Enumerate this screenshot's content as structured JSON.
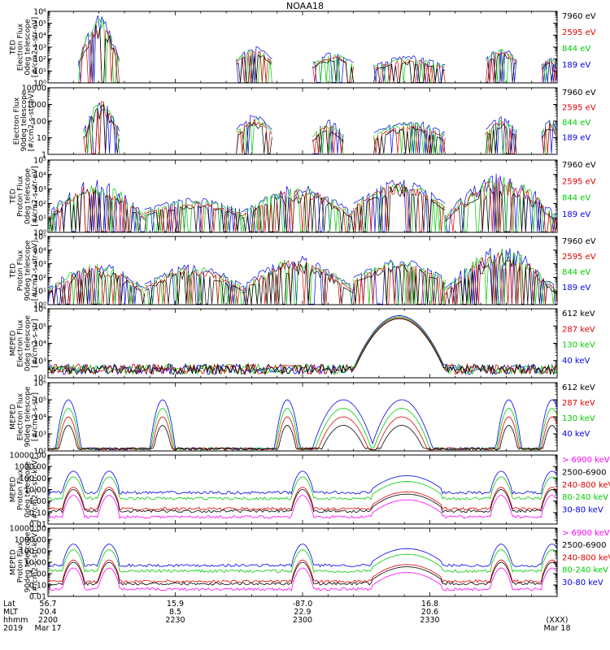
{
  "title": "NOAA18",
  "colors": {
    "blue": "#0000ee",
    "red": "#dd0000",
    "green": "#00cc00",
    "black": "#000000",
    "magenta": "#ff00ff"
  },
  "chart_data": [
    {
      "type": "line",
      "panel": 1,
      "ylog": true,
      "ylim": [
        1,
        1000000
      ],
      "ylabel_lines": [
        "TED",
        "Electron Flux",
        "0deg telescope",
        "[#/cm2-s-str-eV]"
      ],
      "yticks": [
        "10⁰",
        "10¹",
        "10²",
        "10³",
        "10⁴",
        "10⁵",
        "10⁶"
      ],
      "series": [
        {
          "name": "7960 eV",
          "color": "black"
        },
        {
          "name": "2595 eV",
          "color": "red"
        },
        {
          "name": "844 eV",
          "color": "green"
        },
        {
          "name": "189 eV",
          "color": "blue"
        }
      ],
      "segments": [
        {
          "t0": 0.06,
          "t1": 0.14,
          "level": 1.9,
          "peak": 5.8
        },
        {
          "t0": 0.37,
          "t1": 0.44,
          "level": 2.0,
          "peak": 3.1
        },
        {
          "t0": 0.52,
          "t1": 0.6,
          "level": 1.7,
          "peak": 2.6
        },
        {
          "t0": 0.64,
          "t1": 0.78,
          "level": 1.5,
          "peak": 2.3
        },
        {
          "t0": 0.86,
          "t1": 0.92,
          "level": 2.0,
          "peak": 3.0
        },
        {
          "t0": 0.97,
          "t1": 1.0,
          "level": 1.6,
          "peak": 2.2
        }
      ]
    },
    {
      "type": "line",
      "panel": 2,
      "ylog": true,
      "ylim": [
        1,
        10000
      ],
      "ylabel_lines": [
        "Electron Flux",
        "90deg telescope",
        "[#/cm2-s-str-eV]"
      ],
      "yticks": [
        "1",
        "10",
        "100",
        "1000",
        "10000"
      ],
      "series": [
        {
          "name": "7960 eV",
          "color": "black"
        },
        {
          "name": "2595 eV",
          "color": "red"
        },
        {
          "name": "844 eV",
          "color": "green"
        },
        {
          "name": "189 eV",
          "color": "blue"
        }
      ],
      "segments": [
        {
          "t0": 0.07,
          "t1": 0.14,
          "level": 1.4,
          "peak": 3.5
        },
        {
          "t0": 0.37,
          "t1": 0.44,
          "level": 1.5,
          "peak": 2.4
        },
        {
          "t0": 0.52,
          "t1": 0.58,
          "level": 1.2,
          "peak": 2.1
        },
        {
          "t0": 0.64,
          "t1": 0.78,
          "level": 1.3,
          "peak": 2.1
        },
        {
          "t0": 0.86,
          "t1": 0.92,
          "level": 1.5,
          "peak": 2.3
        },
        {
          "t0": 0.97,
          "t1": 1.0,
          "level": 1.4,
          "peak": 2.2
        }
      ]
    },
    {
      "type": "line",
      "panel": 3,
      "ylog": true,
      "ylim": [
        1,
        100000
      ],
      "ylabel_lines": [
        "TED",
        "Proton Flux",
        "0deg telescope",
        "[#/cm2-s-str-eV]"
      ],
      "yticks": [
        "10⁰",
        "10¹",
        "10²",
        "10³",
        "10⁴",
        "10⁵"
      ],
      "series": [
        {
          "name": "7960 eV",
          "color": "black"
        },
        {
          "name": "2595 eV",
          "color": "red"
        },
        {
          "name": "844 eV",
          "color": "green"
        },
        {
          "name": "189 eV",
          "color": "blue"
        }
      ],
      "segments": [
        {
          "t0": 0.0,
          "t1": 0.19,
          "level": 1.3,
          "peak": 3.7
        },
        {
          "t0": 0.19,
          "t1": 0.38,
          "level": 1.6,
          "peak": 2.4
        },
        {
          "t0": 0.38,
          "t1": 0.6,
          "level": 1.4,
          "peak": 3.3
        },
        {
          "t0": 0.6,
          "t1": 0.78,
          "level": 2.0,
          "peak": 3.7
        },
        {
          "t0": 0.78,
          "t1": 1.0,
          "level": 1.2,
          "peak": 4.1
        }
      ]
    },
    {
      "type": "line",
      "panel": 4,
      "ylog": true,
      "ylim": [
        1,
        100000
      ],
      "ylabel_lines": [
        "TED",
        "Proton Flux",
        "90deg telescope",
        "[#/cm2-s-str-eV]"
      ],
      "yticks": [
        "10⁰",
        "10¹",
        "10²",
        "10³",
        "10⁴",
        "10⁵"
      ],
      "series": [
        {
          "name": "7960 eV",
          "color": "black"
        },
        {
          "name": "2595 eV",
          "color": "red"
        },
        {
          "name": "844 eV",
          "color": "green"
        },
        {
          "name": "189 eV",
          "color": "blue"
        }
      ],
      "segments": [
        {
          "t0": 0.0,
          "t1": 0.19,
          "level": 1.2,
          "peak": 3.2
        },
        {
          "t0": 0.19,
          "t1": 0.38,
          "level": 1.5,
          "peak": 3.0
        },
        {
          "t0": 0.38,
          "t1": 0.6,
          "level": 1.3,
          "peak": 3.6
        },
        {
          "t0": 0.6,
          "t1": 0.78,
          "level": 2.0,
          "peak": 3.4
        },
        {
          "t0": 0.78,
          "t1": 1.0,
          "level": 1.2,
          "peak": 4.3
        }
      ]
    },
    {
      "type": "line",
      "panel": 5,
      "ylog": true,
      "ylim": [
        100,
        1000000
      ],
      "ylabel_lines": [
        "MEPED",
        "Electron Flux",
        "0deg telescope",
        "[#/cm2-s-str]"
      ],
      "yticks": [
        "10²",
        "10³",
        "10⁴",
        "10⁵",
        "10⁶"
      ],
      "series": [
        {
          "name": "612 keV",
          "color": "black"
        },
        {
          "name": "287 keV",
          "color": "red"
        },
        {
          "name": "130 keV",
          "color": "green"
        },
        {
          "name": "40 keV",
          "color": "blue"
        }
      ],
      "dome": {
        "t_center": 0.69,
        "half_width": 0.095,
        "peak_log": 5.6,
        "floor_log": 2.2
      }
    },
    {
      "type": "line",
      "panel": 6,
      "ylog": true,
      "ylim": [
        100,
        1000000
      ],
      "ylabel_lines": [
        "MEPED",
        "Electron Flux",
        "90deg telescope",
        "[#/cm2-s-str]"
      ],
      "yticks": [
        "10²",
        "10³",
        "10⁴",
        "10⁵",
        "10⁶"
      ],
      "series": [
        {
          "name": "612 keV",
          "color": "black"
        },
        {
          "name": "287 keV",
          "color": "red"
        },
        {
          "name": "130 keV",
          "color": "green"
        },
        {
          "name": "40 keV",
          "color": "blue"
        }
      ],
      "bumps": [
        0.04,
        0.225,
        0.47,
        0.58,
        0.695,
        0.905,
        0.99
      ]
    },
    {
      "type": "line",
      "panel": 7,
      "ylog": true,
      "ylim": [
        0.01,
        10000
      ],
      "ylabel_lines": [
        "MEPED",
        "Proton Flux",
        "0deg telescope",
        "[#/cm2-s-str-keV]"
      ],
      "yticks": [
        "0.01",
        "0.10",
        "1.00",
        "10.00",
        "100.00",
        "1000.00",
        "10000.00"
      ],
      "series": [
        {
          "name": "> 6900 keV",
          "color": "magenta"
        },
        {
          "name": "2500-6900",
          "color": "black"
        },
        {
          "name": "240-800 keV",
          "color": "red"
        },
        {
          "name": "80-240 keV",
          "color": "green"
        },
        {
          "name": "30-80 keV",
          "color": "blue"
        }
      ]
    },
    {
      "type": "line",
      "panel": 8,
      "ylog": true,
      "ylim": [
        0.01,
        10000
      ],
      "ylabel_lines": [
        "MEPED",
        "Proton Flux",
        "90deg telescope",
        "[#/cm2-s-str-keV]"
      ],
      "yticks": [
        "0.01",
        "0.10",
        "1.00",
        "10.00",
        "100.00",
        "1000.00",
        "10000.00"
      ],
      "series": [
        {
          "name": "> 6900 keV",
          "color": "magenta"
        },
        {
          "name": "2500-6900",
          "color": "black"
        },
        {
          "name": "240-800 keV",
          "color": "red"
        },
        {
          "name": "80-240 keV",
          "color": "green"
        },
        {
          "name": "30-80 keV",
          "color": "blue"
        }
      ]
    }
  ],
  "x_axis": {
    "row_labels": [
      "Lat",
      "MLT",
      "hhmm",
      "2019"
    ],
    "ticks": [
      {
        "t": 0.0,
        "lines": [
          "56.7",
          "20.4",
          "2200",
          "Mar 17"
        ]
      },
      {
        "t": 0.25,
        "lines": [
          "15.9",
          "8.5",
          "2230",
          ""
        ]
      },
      {
        "t": 0.5,
        "lines": [
          "-87.0",
          "22.9",
          "2300",
          ""
        ]
      },
      {
        "t": 0.75,
        "lines": [
          "16.8",
          "20.6",
          "2330",
          ""
        ]
      },
      {
        "t": 1.0,
        "lines": [
          "",
          "",
          "(XXX)",
          "Mar 18"
        ]
      }
    ]
  }
}
